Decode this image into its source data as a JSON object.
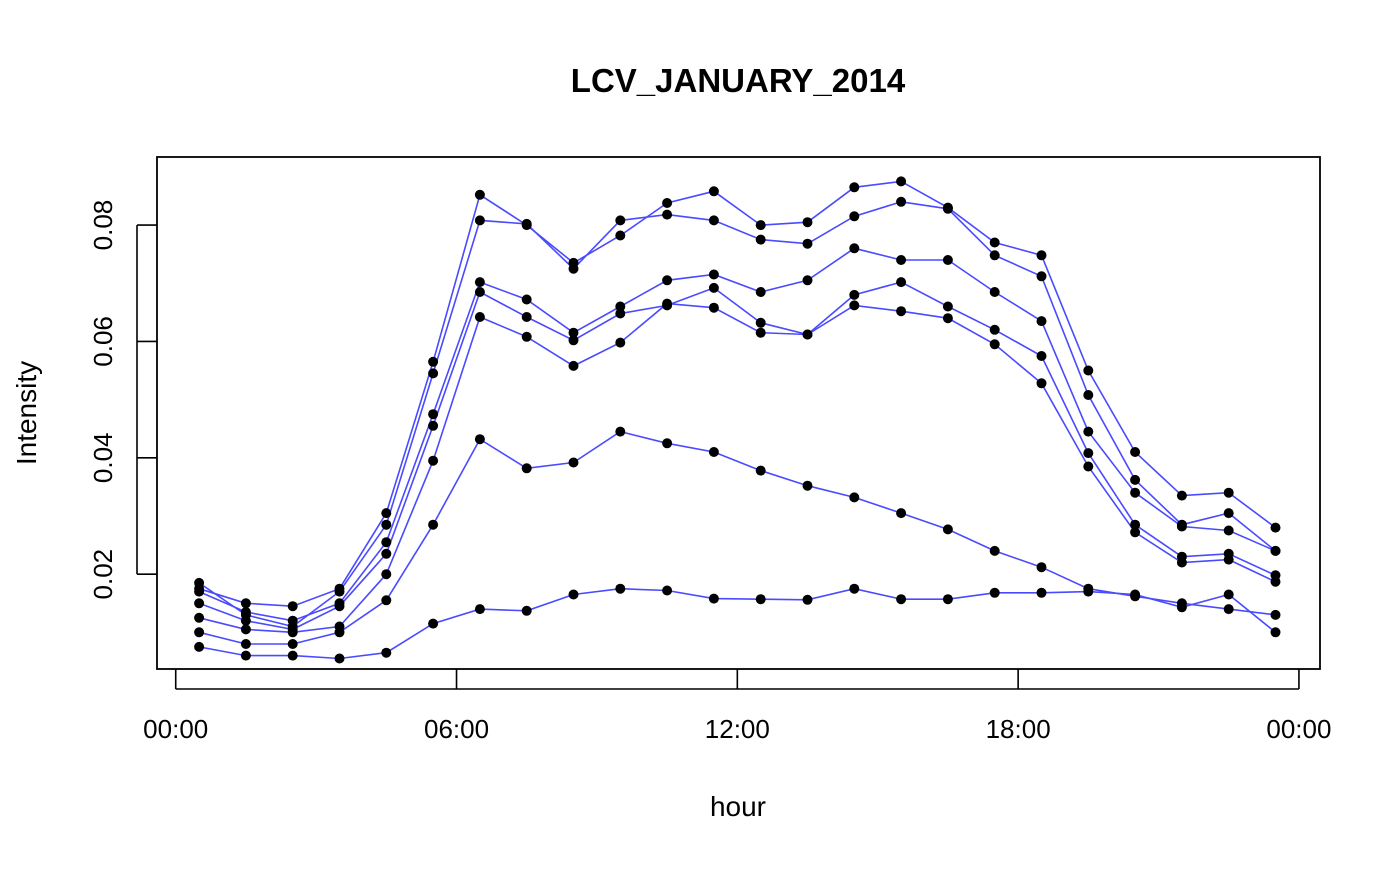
{
  "chart_data": {
    "type": "line",
    "title": "LCV_JANUARY_2014",
    "xlabel": "hour",
    "ylabel": "Intensity",
    "x_unit": "hours",
    "x": [
      0.5,
      1.5,
      2.5,
      3.5,
      4.5,
      5.5,
      6.5,
      7.5,
      8.5,
      9.5,
      10.5,
      11.5,
      12.5,
      13.5,
      14.5,
      15.5,
      16.5,
      17.5,
      18.5,
      19.5,
      20.5,
      21.5,
      22.5,
      23.5
    ],
    "xlim": [
      -0.4,
      24.45
    ],
    "x_ticks": [
      0,
      6,
      12,
      18,
      24
    ],
    "x_tick_labels": [
      "00:00",
      "06:00",
      "12:00",
      "18:00",
      "00:00"
    ],
    "ylim": [
      0.0037,
      0.0917
    ],
    "y_ticks": [
      0.02,
      0.04,
      0.06,
      0.08
    ],
    "y_tick_labels": [
      "0.02",
      "0.04",
      "0.06",
      "0.08"
    ],
    "grid": false,
    "legend": "none",
    "series": [
      {
        "values": [
          0.0175,
          0.015,
          0.0145,
          0.0175,
          0.0305,
          0.0565,
          0.0852,
          0.08,
          0.0735,
          0.0782,
          0.0838,
          0.0858,
          0.08,
          0.0805,
          0.0865,
          0.0875,
          0.083,
          0.077,
          0.0748,
          0.055,
          0.041,
          0.0335,
          0.034,
          0.028
        ]
      },
      {
        "values": [
          0.0185,
          0.013,
          0.011,
          0.017,
          0.0285,
          0.0545,
          0.0808,
          0.0802,
          0.0725,
          0.0808,
          0.0818,
          0.0808,
          0.0775,
          0.0768,
          0.0815,
          0.084,
          0.0828,
          0.0748,
          0.0712,
          0.0508,
          0.0362,
          0.0285,
          0.0305,
          0.024
        ]
      },
      {
        "values": [
          0.017,
          0.0135,
          0.012,
          0.015,
          0.0255,
          0.0475,
          0.0702,
          0.0672,
          0.0615,
          0.066,
          0.0705,
          0.0715,
          0.0685,
          0.0705,
          0.076,
          0.074,
          0.074,
          0.0685,
          0.0635,
          0.0445,
          0.034,
          0.0282,
          0.0275,
          0.024
        ]
      },
      {
        "values": [
          0.015,
          0.012,
          0.0105,
          0.0145,
          0.0235,
          0.0455,
          0.0685,
          0.0642,
          0.0602,
          0.0648,
          0.0662,
          0.0692,
          0.0632,
          0.0612,
          0.068,
          0.0702,
          0.066,
          0.062,
          0.0575,
          0.0408,
          0.0285,
          0.023,
          0.0235,
          0.0198
        ]
      },
      {
        "values": [
          0.0125,
          0.0105,
          0.01,
          0.011,
          0.02,
          0.0395,
          0.0642,
          0.0608,
          0.0558,
          0.0598,
          0.0665,
          0.0658,
          0.0615,
          0.0612,
          0.0662,
          0.0652,
          0.064,
          0.0595,
          0.0528,
          0.0385,
          0.0272,
          0.022,
          0.0225,
          0.0187
        ]
      },
      {
        "values": [
          0.01,
          0.008,
          0.008,
          0.01,
          0.0155,
          0.0285,
          0.0432,
          0.0382,
          0.0392,
          0.0445,
          0.0425,
          0.041,
          0.0378,
          0.0352,
          0.0332,
          0.0305,
          0.0277,
          0.024,
          0.0212,
          0.0175,
          0.0162,
          0.015,
          0.014,
          0.013
        ]
      },
      {
        "values": [
          0.0075,
          0.006,
          0.006,
          0.0055,
          0.0065,
          0.0115,
          0.014,
          0.0137,
          0.0165,
          0.0175,
          0.0172,
          0.0158,
          0.0157,
          0.0156,
          0.0175,
          0.0157,
          0.0157,
          0.0168,
          0.0168,
          0.017,
          0.0165,
          0.0143,
          0.0165,
          0.01
        ]
      }
    ],
    "colors": {
      "line": "#4a4aff",
      "point": "#000000"
    }
  }
}
